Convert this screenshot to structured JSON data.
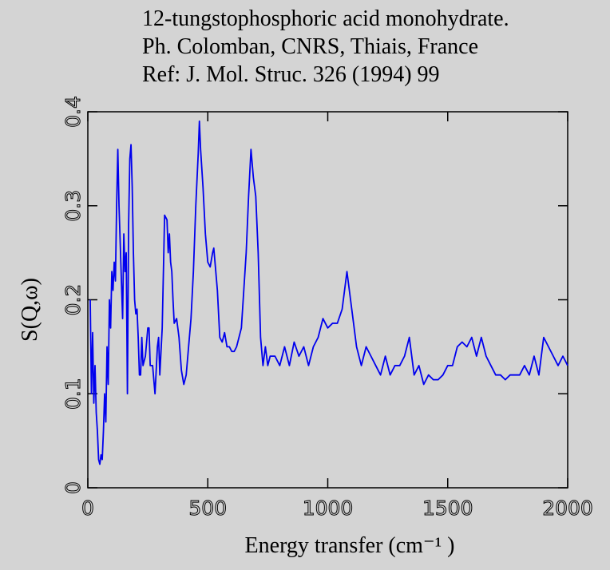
{
  "chart_data": {
    "type": "line",
    "title": [
      "12-tungstophosphoric acid monohydrate.",
      "Ph. Colomban, CNRS, Thiais, France",
      "Ref: J. Mol. Struc. 326 (1994) 99"
    ],
    "xlabel": "Energy transfer (cm⁻¹ )",
    "ylabel": "S(Q,ω)",
    "xlim": [
      0,
      2000
    ],
    "ylim": [
      0,
      0.4
    ],
    "xticks": [
      0,
      500,
      1000,
      1500,
      2000
    ],
    "yticks": [
      0,
      0.1,
      0.2,
      0.3,
      0.4
    ],
    "grid": false,
    "x": [
      10,
      15,
      20,
      25,
      30,
      35,
      40,
      45,
      50,
      55,
      60,
      65,
      70,
      75,
      80,
      85,
      90,
      95,
      100,
      105,
      110,
      115,
      120,
      125,
      130,
      135,
      140,
      145,
      150,
      155,
      160,
      165,
      170,
      175,
      180,
      185,
      190,
      195,
      200,
      205,
      210,
      215,
      220,
      225,
      230,
      240,
      250,
      255,
      260,
      270,
      280,
      290,
      295,
      300,
      310,
      320,
      330,
      335,
      340,
      345,
      350,
      355,
      360,
      370,
      380,
      390,
      400,
      410,
      420,
      430,
      440,
      450,
      460,
      465,
      470,
      480,
      490,
      500,
      510,
      520,
      525,
      530,
      540,
      550,
      560,
      570,
      580,
      590,
      600,
      610,
      620,
      640,
      650,
      660,
      670,
      680,
      690,
      700,
      710,
      720,
      730,
      740,
      750,
      760,
      780,
      800,
      820,
      840,
      860,
      880,
      900,
      920,
      940,
      960,
      980,
      1000,
      1020,
      1040,
      1060,
      1080,
      1100,
      1120,
      1140,
      1160,
      1180,
      1200,
      1220,
      1240,
      1260,
      1280,
      1300,
      1320,
      1340,
      1360,
      1380,
      1400,
      1420,
      1440,
      1460,
      1480,
      1500,
      1520,
      1540,
      1560,
      1580,
      1600,
      1620,
      1640,
      1660,
      1680,
      1700,
      1720,
      1740,
      1760,
      1780,
      1800,
      1820,
      1840,
      1860,
      1880,
      1900,
      1920,
      1940,
      1960,
      1980,
      2000
    ],
    "series": [
      {
        "name": "S(Q,ω)",
        "color": "#0000ee",
        "values": [
          0.2,
          0.1,
          0.165,
          0.09,
          0.13,
          0.08,
          0.06,
          0.03,
          0.025,
          0.035,
          0.03,
          0.06,
          0.1,
          0.07,
          0.15,
          0.11,
          0.2,
          0.17,
          0.23,
          0.21,
          0.24,
          0.22,
          0.3,
          0.36,
          0.3,
          0.26,
          0.22,
          0.18,
          0.27,
          0.23,
          0.25,
          0.1,
          0.28,
          0.35,
          0.365,
          0.32,
          0.25,
          0.2,
          0.185,
          0.19,
          0.16,
          0.12,
          0.12,
          0.16,
          0.13,
          0.14,
          0.17,
          0.17,
          0.13,
          0.13,
          0.1,
          0.15,
          0.16,
          0.12,
          0.17,
          0.29,
          0.285,
          0.25,
          0.27,
          0.24,
          0.23,
          0.2,
          0.175,
          0.18,
          0.16,
          0.125,
          0.11,
          0.12,
          0.15,
          0.18,
          0.23,
          0.3,
          0.355,
          0.39,
          0.36,
          0.32,
          0.27,
          0.24,
          0.235,
          0.25,
          0.255,
          0.24,
          0.21,
          0.16,
          0.155,
          0.165,
          0.15,
          0.15,
          0.145,
          0.145,
          0.15,
          0.17,
          0.21,
          0.25,
          0.31,
          0.36,
          0.33,
          0.31,
          0.25,
          0.16,
          0.13,
          0.15,
          0.13,
          0.14,
          0.14,
          0.13,
          0.15,
          0.13,
          0.155,
          0.14,
          0.15,
          0.13,
          0.15,
          0.16,
          0.18,
          0.17,
          0.175,
          0.175,
          0.19,
          0.23,
          0.19,
          0.15,
          0.13,
          0.15,
          0.14,
          0.13,
          0.12,
          0.14,
          0.12,
          0.13,
          0.13,
          0.14,
          0.16,
          0.12,
          0.13,
          0.11,
          0.12,
          0.115,
          0.115,
          0.12,
          0.13,
          0.13,
          0.15,
          0.155,
          0.15,
          0.16,
          0.14,
          0.16,
          0.14,
          0.13,
          0.12,
          0.12,
          0.115,
          0.12,
          0.12,
          0.12,
          0.13,
          0.12,
          0.14,
          0.12,
          0.16,
          0.15,
          0.14,
          0.13,
          0.14,
          0.13
        ]
      }
    ]
  }
}
